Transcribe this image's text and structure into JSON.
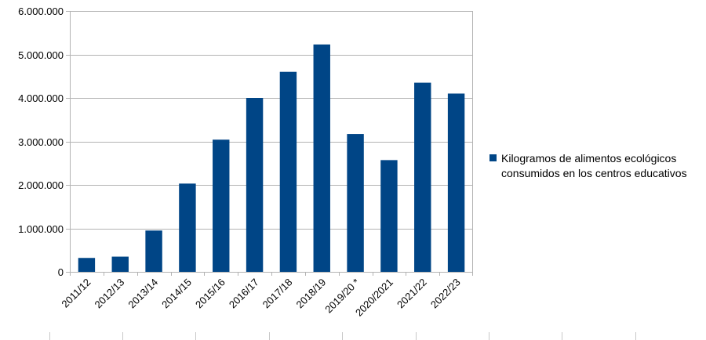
{
  "chart_data": {
    "type": "bar",
    "title": "",
    "xlabel": "",
    "ylabel": "",
    "categories": [
      "2011/12",
      "2012/13",
      "2013/14",
      "2014/15",
      "2015/16",
      "2016/17",
      "2017/18",
      "2018/19",
      "2019/20 *",
      "2020/2021",
      "2021/22",
      "2022/23"
    ],
    "series": [
      {
        "name": "Kilogramos de alimentos ecológicos consumidos en los centros educativos",
        "values": [
          320000,
          350000,
          950000,
          2030000,
          3040000,
          4000000,
          4600000,
          5230000,
          3170000,
          2570000,
          4350000,
          4100000
        ]
      }
    ],
    "ylim": [
      0,
      6000000
    ],
    "yticks": [
      0,
      1000000,
      2000000,
      3000000,
      4000000,
      5000000,
      6000000
    ],
    "ytick_labels": [
      "0",
      "1.000.000",
      "2.000.000",
      "3.000.000",
      "4.000.000",
      "5.000.000",
      "6.000.000"
    ],
    "grid": true,
    "legend_position": "right",
    "colors": {
      "bar": "#004586",
      "grid": "#b3b3b3",
      "axis": "#b3b3b3"
    }
  }
}
